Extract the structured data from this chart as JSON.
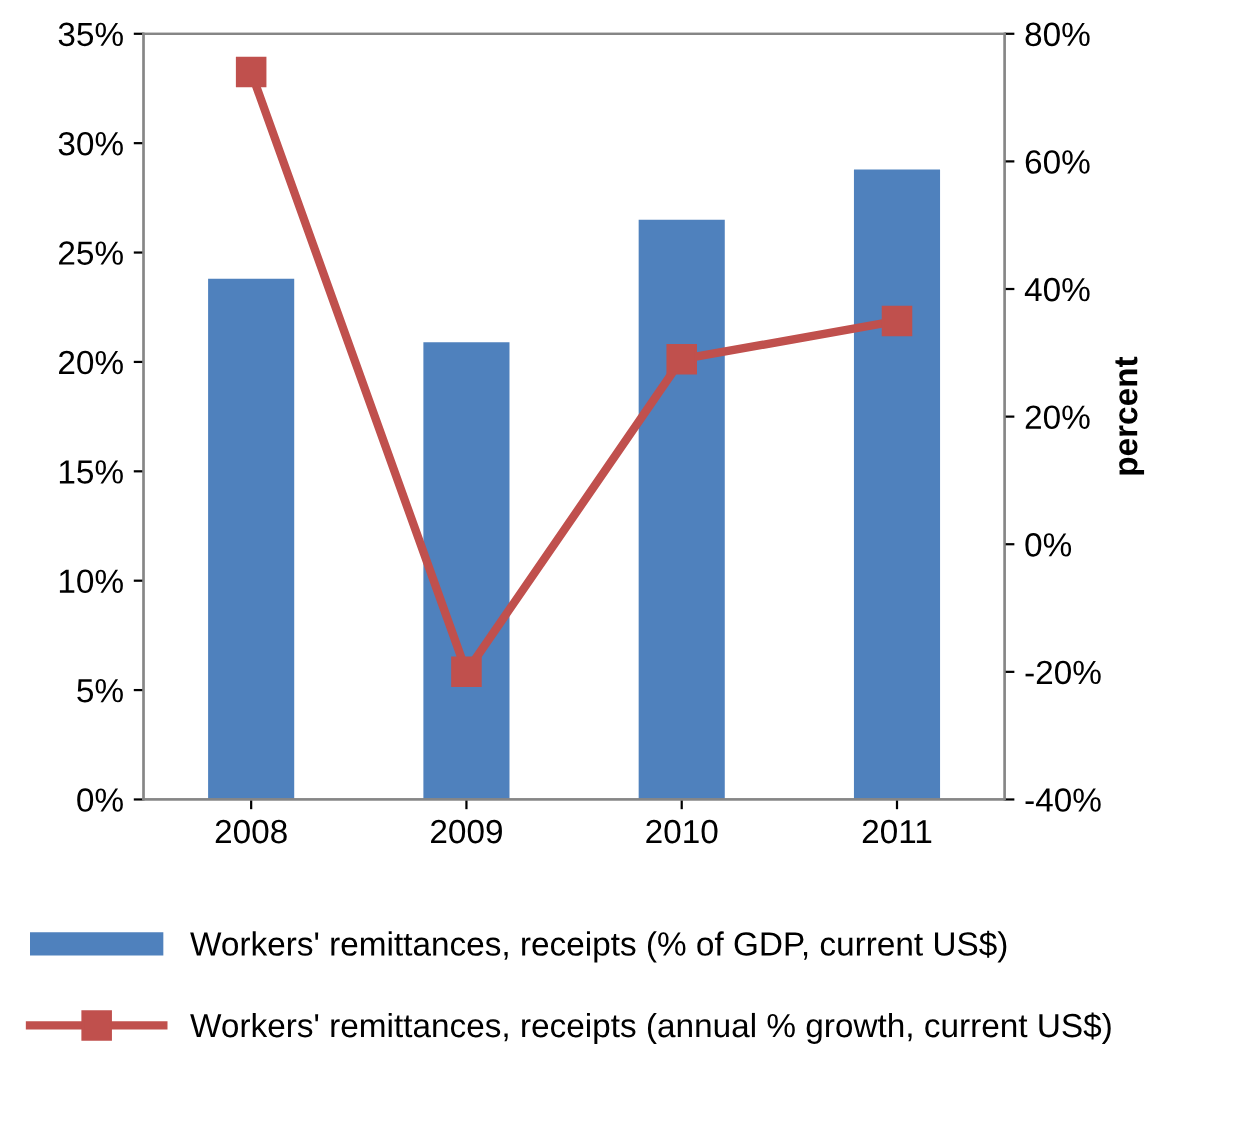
{
  "chart_data": {
    "type": "bar",
    "categories": [
      "2008",
      "2009",
      "2010",
      "2011"
    ],
    "y2label": "percent",
    "legend": "bottom",
    "grid": false,
    "series": [
      {
        "name": "Workers' remittances, receipts (% of GDP, current US$)",
        "color": "#4f81bd",
        "values": [
          23.8,
          20.9,
          26.5,
          28.8
        ]
      },
      {
        "name": "Workers' remittances, receipts (annual % growth, current US$)",
        "type": "line",
        "axis": "y2",
        "color": "#c0504d",
        "marker": "square",
        "values": [
          74,
          -20,
          29,
          35
        ]
      }
    ],
    "ylim": [
      0,
      35
    ],
    "yticks": [
      {
        "value": 0,
        "label": "0%"
      },
      {
        "value": 5,
        "label": "5%"
      },
      {
        "value": 10,
        "label": "10%"
      },
      {
        "value": 15,
        "label": "15%"
      },
      {
        "value": 20,
        "label": "20%"
      },
      {
        "value": 25,
        "label": "25%"
      },
      {
        "value": 30,
        "label": "30%"
      },
      {
        "value": 35,
        "label": "35%"
      }
    ],
    "y2lim": [
      -40,
      80
    ],
    "y2ticks": [
      {
        "value": -40,
        "label": "-40%"
      },
      {
        "value": -20,
        "label": "-20%"
      },
      {
        "value": 0,
        "label": "0%"
      },
      {
        "value": 20,
        "label": "20%"
      },
      {
        "value": 40,
        "label": "40%"
      },
      {
        "value": 60,
        "label": "60%"
      },
      {
        "value": 80,
        "label": "80%"
      }
    ]
  }
}
